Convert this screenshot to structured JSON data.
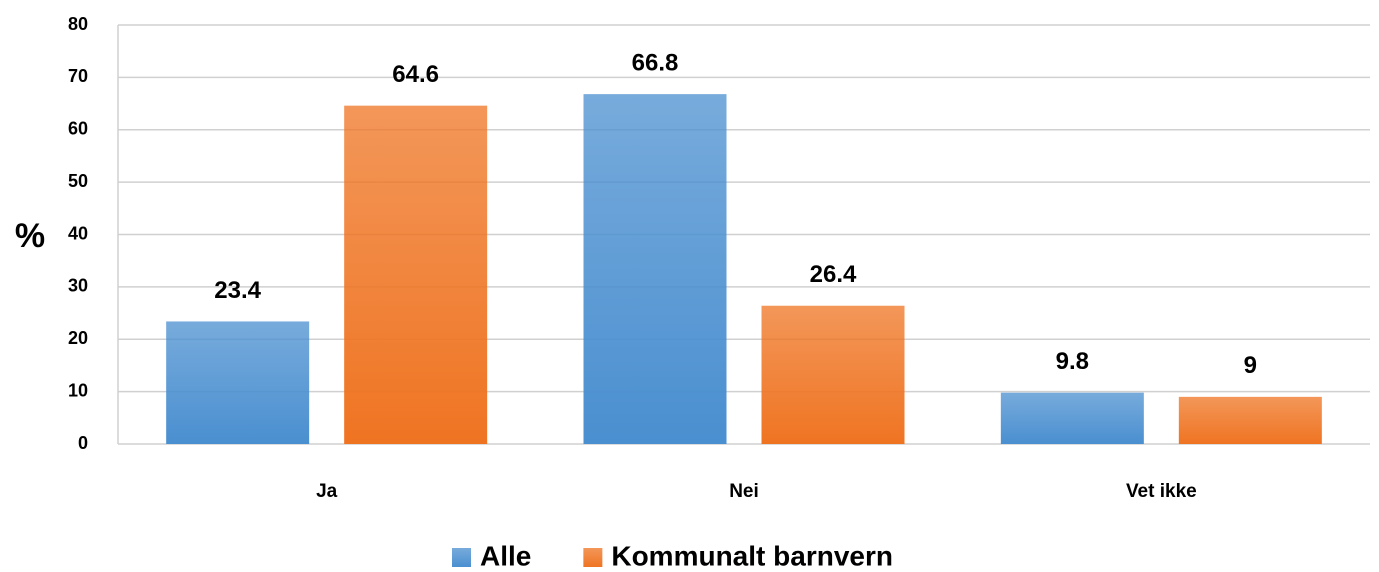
{
  "chart_data": {
    "type": "bar",
    "y_label": "%",
    "categories": [
      "Ja",
      "Nei",
      "Vet ikke"
    ],
    "series": [
      {
        "name": "Alle",
        "color": "#4a8fd0",
        "values": [
          23.4,
          66.8,
          9.8
        ]
      },
      {
        "name": "Kommunalt barnvern",
        "color": "#ef7422",
        "values": [
          64.6,
          26.4,
          9
        ]
      }
    ],
    "ylim": [
      0,
      80
    ],
    "yticks": [
      0,
      10,
      20,
      30,
      40,
      50,
      60,
      70,
      80
    ],
    "grid": true,
    "legend": "bottom"
  }
}
